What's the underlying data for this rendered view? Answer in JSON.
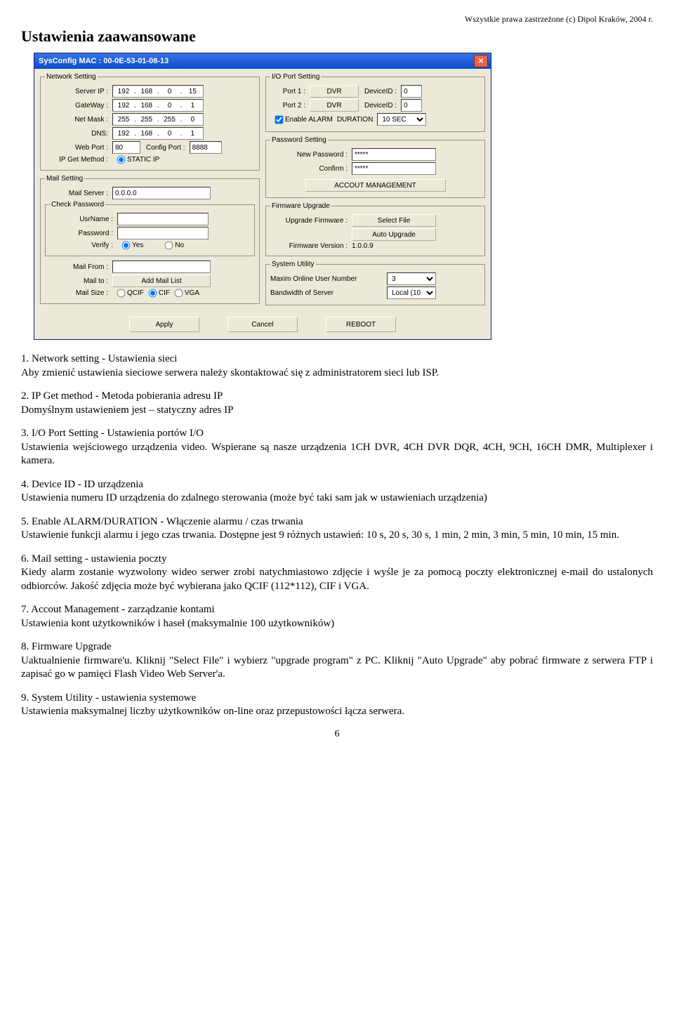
{
  "copyright": "Wszystkie prawa zastrzeżone (c) Dipol Kraków, 2004 r.",
  "title": "Ustawienia zaawansowane",
  "win": {
    "title": "SysConfig    MAC : 00-0E-53-01-08-13",
    "net": {
      "legend": "Network Setting",
      "server_lbl": "Server IP :",
      "server": [
        "192",
        "168",
        "0",
        "15"
      ],
      "gw_lbl": "GateWay :",
      "gw": [
        "192",
        "168",
        "0",
        "1"
      ],
      "nm_lbl": "Net Mask :",
      "nm": [
        "255",
        "255",
        "255",
        "0"
      ],
      "dns_lbl": "DNS:",
      "dns": [
        "192",
        "168",
        "0",
        "1"
      ],
      "webport_lbl": "Web Port :",
      "webport": "80",
      "cfgport_lbl": "Config Port :",
      "cfgport": "8888",
      "ipget_lbl": "IP Get Method :",
      "ipget_opt": "STATIC IP"
    },
    "mail": {
      "legend": "Mail Setting",
      "server_lbl": "Mail Server :",
      "server": "0.0.0.0",
      "chkpw_legend": "Check Password",
      "usr_lbl": "UsrName :",
      "pwd_lbl": "Password :",
      "verify_lbl": "Verify :",
      "yes": "Yes",
      "no": "No",
      "from_lbl": "Mail From :",
      "to_lbl": "Mail to :",
      "addmail_btn": "Add Mail List",
      "size_lbl": "Mail Size :",
      "qcif": "QCIF",
      "cif": "CIF",
      "vga": "VGA"
    },
    "io": {
      "legend": "I/O Port Setting",
      "port1_lbl": "Port 1 :",
      "port2_lbl": "Port 2 :",
      "dvr_btn": "DVR",
      "devid_lbl": "DeviceID :",
      "devid": "0",
      "alarm_chk": "Enable ALARM",
      "duration_lbl": "DURATION",
      "duration": "10 SEC"
    },
    "pw": {
      "legend": "Password Setting",
      "new_lbl": "New Password :",
      "val": "*****",
      "conf_lbl": "Confirm :",
      "acct_btn": "ACCOUT MANAGEMENT"
    },
    "fw": {
      "legend": "Firmware Upgrade",
      "upgrade_lbl": "Upgrade Firmware :",
      "selfile_btn": "Select File",
      "auto_btn": "Auto Upgrade",
      "ver_lbl": "Firmware Version :",
      "ver": "1.0.0.9"
    },
    "sys": {
      "legend": "System Utility",
      "max_lbl": "Maxim Online User Number",
      "max": "3",
      "bw_lbl": "Bandwidth of Server",
      "bw": "Local (10"
    },
    "btns": {
      "apply": "Apply",
      "cancel": "Cancel",
      "reboot": "REBOOT"
    }
  },
  "body": {
    "p1": "1. Network setting - Ustawienia sieci\nAby zmienić ustawienia sieciowe serwera należy skontaktować się z administratorem sieci lub ISP.",
    "p2": "2. IP Get method - Metoda pobierania adresu IP\nDomyślnym ustawieniem jest – statyczny adres IP",
    "p3": "3. I/O Port Setting - Ustawienia portów I/O\nUstawienia wejściowego urządzenia video. Wspierane są nasze urządzenia 1CH DVR, 4CH DVR DQR, 4CH, 9CH, 16CH DMR, Multiplexer i kamera.",
    "p4": "4. Device ID - ID urządzenia\nUstawienia numeru ID urządzenia do zdalnego sterowania (może być taki sam jak w ustawieniach urządzenia)",
    "p5": "5. Enable ALARM/DURATION - Włączenie alarmu / czas trwania\nUstawienie funkcji alarmu i jego czas trwania. Dostępne jest 9 różnych ustawień: 10 s, 20 s, 30 s, 1 min, 2 min, 3 min, 5 min, 10 min, 15 min.",
    "p6": "6. Mail setting - ustawienia poczty\nKiedy alarm zostanie wyzwolony wideo serwer zrobi natychmiastowo zdjęcie i wyśle je za pomocą poczty elektronicznej e-mail do ustalonych odbiorców. Jakość zdjęcia może być wybierana jako QCIF (112*112), CIF i VGA.",
    "p7": "7. Accout Management - zarządzanie kontami\nUstawienia kont użytkowników i haseł (maksymalnie 100 użytkowników)",
    "p8": "8. Firmware Upgrade\nUaktualnienie firmware'u. Kliknij \"Select File\" i wybierz \"upgrade program\" z PC. Kliknij \"Auto Upgrade\" aby pobrać firmware z serwera FTP i zapisać go w pamięci Flash Video Web Server'a.",
    "p9": "9. System Utility - ustawienia systemowe\nUstawienia maksymalnej liczby użytkowników on-line oraz przepustowości łącza serwera."
  },
  "pagenum": "6"
}
